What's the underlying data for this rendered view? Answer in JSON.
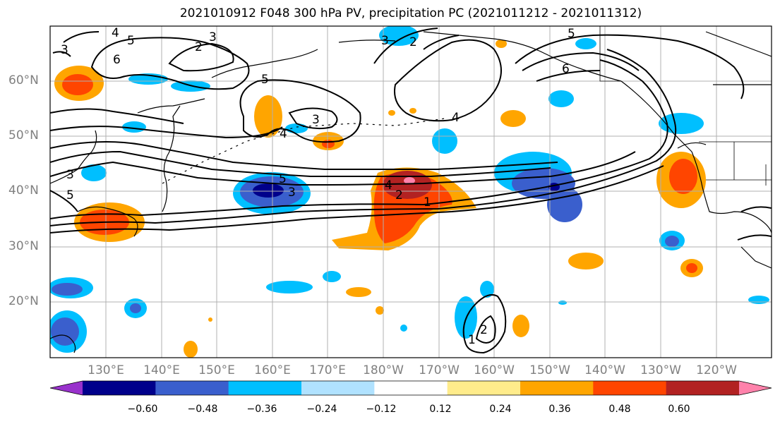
{
  "title": "2021010912 F048 300 hPa PV, precipitation PC (2021011212 - 2021011312)",
  "latitude_labels": [
    "60°N",
    "50°N",
    "40°N",
    "30°N",
    "20°N"
  ],
  "longitude_labels": [
    "130°E",
    "140°E",
    "150°E",
    "160°E",
    "170°E",
    "180°W",
    "170°W",
    "160°W",
    "150°W",
    "140°W",
    "130°W",
    "120°W"
  ],
  "colorbar": {
    "ticks": [
      "−0.60",
      "−0.48",
      "−0.36",
      "−0.24",
      "−0.12",
      "0.12",
      "0.24",
      "0.36",
      "0.48",
      "0.60"
    ],
    "colors": [
      "#9932cc",
      "#00008b",
      "#3a5fcd",
      "#00bfff",
      "#b0e2ff",
      "#ffffff",
      "#ffec8b",
      "#ffa500",
      "#ff4500",
      "#b22222",
      "#ff82ab"
    ]
  },
  "pv_contour_labels": [
    "1",
    "2",
    "3",
    "4",
    "5",
    "6"
  ],
  "colors": {
    "coastline": "#000000",
    "grid": "#b0b0b0",
    "label_gray": "#808080"
  }
}
